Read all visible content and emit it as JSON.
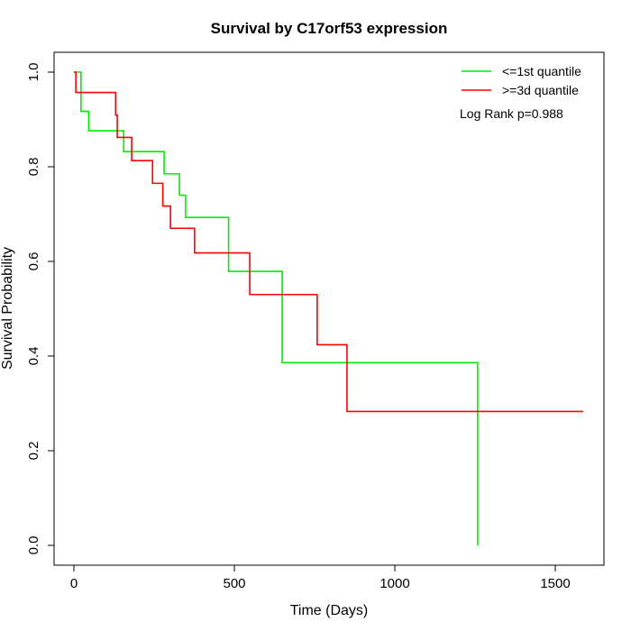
{
  "chart_data": {
    "type": "line",
    "subtype": "kaplan-meier step",
    "title": "Survival by C17orf53 expression",
    "xlabel": "Time (Days)",
    "ylabel": "Survival Probability",
    "xlim": [
      -60,
      1660
    ],
    "ylim": [
      -0.04,
      1.04
    ],
    "xticks": [
      0,
      500,
      1000,
      1500
    ],
    "xtick_labels": [
      "0",
      "500",
      "1000",
      "1500"
    ],
    "yticks": [
      0.0,
      0.2,
      0.4,
      0.6,
      0.8,
      1.0
    ],
    "ytick_labels": [
      "0.0",
      "0.2",
      "0.4",
      "0.6",
      "0.8",
      "1.0"
    ],
    "grid": false,
    "legend_position": "top-right",
    "annotation": "Log Rank p=0.988",
    "series": [
      {
        "name": "<=1st quantile",
        "color": "#00ee00",
        "times": [
          0,
          22,
          46,
          155,
          281,
          329,
          348,
          482,
          649,
          1258
        ],
        "survival": [
          1.0,
          0.917,
          0.876,
          0.832,
          0.785,
          0.74,
          0.693,
          0.579,
          0.386,
          0.0
        ],
        "end_time": 1258
      },
      {
        "name": ">=3d quantile",
        "color": "#ff0000",
        "times": [
          0,
          6,
          130,
          135,
          180,
          245,
          277,
          301,
          376,
          548,
          758,
          851
        ],
        "survival": [
          1.0,
          0.957,
          0.909,
          0.862,
          0.813,
          0.765,
          0.717,
          0.67,
          0.618,
          0.53,
          0.424,
          0.283
        ],
        "end_time": 1587
      }
    ]
  }
}
